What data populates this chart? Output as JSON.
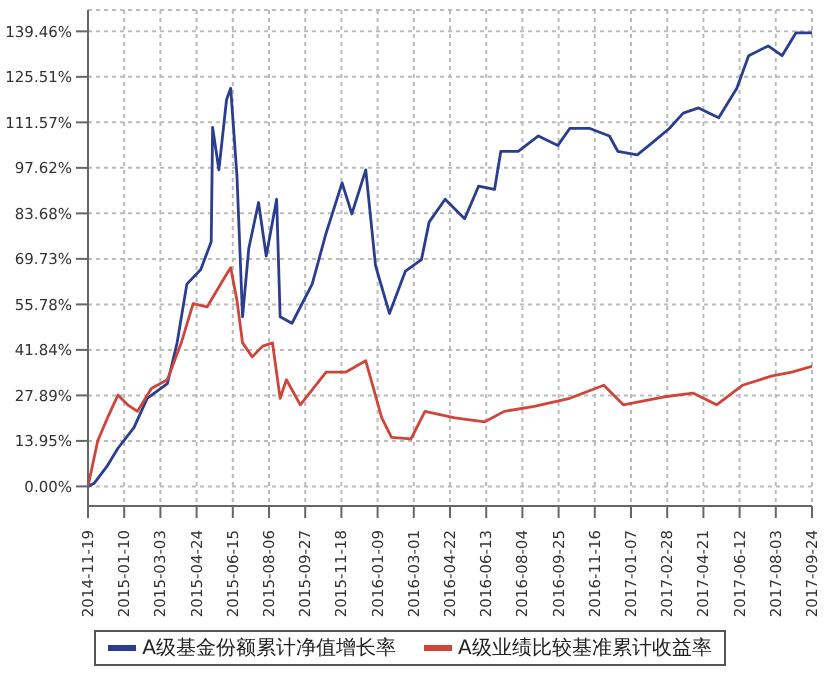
{
  "chart_data": {
    "type": "line",
    "x": [
      "2014-11-19",
      "2014-11-28",
      "2014-12-17",
      "2015-01-01",
      "2015-01-24",
      "2015-02-12",
      "2015-03-13",
      "2015-03-27",
      "2015-04-10",
      "2015-04-30",
      "2015-05-15",
      "2015-05-17",
      "2015-05-26",
      "2015-06-06",
      "2015-06-12",
      "2015-06-21",
      "2015-06-29",
      "2015-07-08",
      "2015-07-22",
      "2015-08-02",
      "2015-08-17",
      "2015-08-22",
      "2015-09-08",
      "2015-10-07",
      "2015-10-27",
      "2015-11-19",
      "2015-12-03",
      "2015-12-23",
      "2016-01-06",
      "2016-01-26",
      "2016-02-18",
      "2016-03-12",
      "2016-03-23",
      "2016-04-15",
      "2016-05-13",
      "2016-06-02",
      "2016-06-25",
      "2016-07-04",
      "2016-07-29",
      "2016-08-27",
      "2016-09-24",
      "2016-10-11",
      "2016-11-09",
      "2016-12-07",
      "2016-12-19",
      "2017-01-16",
      "2017-02-08",
      "2017-03-03",
      "2017-03-23",
      "2017-04-14",
      "2017-05-13",
      "2017-06-08",
      "2017-06-25",
      "2017-07-23",
      "2017-08-12",
      "2017-09-01",
      "2017-09-24"
    ],
    "series": [
      {
        "name": "A级基金份额累计净值增长率",
        "color": "#2b3d8f",
        "values": [
          0,
          1,
          6.4,
          11.7,
          18,
          27,
          31.5,
          44,
          62,
          66.5,
          75,
          110,
          97,
          118.5,
          122,
          95,
          52,
          73,
          87,
          70.6,
          88,
          52,
          50,
          62,
          77.6,
          93,
          83.5,
          97,
          67.7,
          53,
          66,
          69.5,
          81,
          88,
          82,
          92,
          91,
          102.7,
          102.7,
          107.4,
          104.5,
          109.7,
          109.7,
          107.4,
          102.7,
          101.6,
          105.6,
          109.7,
          114.4,
          116,
          113,
          122,
          132,
          135,
          132,
          139,
          139
        ]
      },
      {
        "name": "A级业绩比较基准累计收益率",
        "color": "#d0453a",
        "x": [
          "2014-11-19",
          "2014-12-03",
          "2014-12-17",
          "2015-01-01",
          "2015-01-15",
          "2015-01-29",
          "2015-02-18",
          "2015-03-13",
          "2015-04-02",
          "2015-04-19",
          "2015-05-09",
          "2015-06-06",
          "2015-06-12",
          "2015-06-21",
          "2015-06-29",
          "2015-07-13",
          "2015-07-28",
          "2015-08-11",
          "2015-08-22",
          "2015-08-31",
          "2015-09-20",
          "2015-10-27",
          "2015-11-24",
          "2015-12-23",
          "2016-01-15",
          "2016-01-29",
          "2016-02-26",
          "2016-03-17",
          "2016-04-29",
          "2016-06-11",
          "2016-07-09",
          "2016-08-21",
          "2016-10-11",
          "2016-11-29",
          "2016-12-27",
          "2017-02-22",
          "2017-04-06",
          "2017-05-10",
          "2017-06-16",
          "2017-07-29",
          "2017-08-26",
          "2017-09-24"
        ],
        "values": [
          0,
          14,
          21,
          28,
          25,
          23,
          30,
          32.7,
          44,
          56,
          55,
          65,
          67,
          57,
          44,
          39.7,
          43,
          44,
          27,
          32.7,
          25,
          35,
          35,
          38.5,
          21,
          15,
          14.6,
          23,
          21,
          19.8,
          23,
          24.5,
          27,
          31,
          25,
          27.4,
          28.6,
          25,
          31,
          33.9,
          35,
          36.8
        ]
      }
    ],
    "xlim": [
      "2014-11-19",
      "2017-09-24"
    ],
    "xticks": [
      "2014-11-19",
      "2015-01-10",
      "2015-03-03",
      "2015-04-24",
      "2015-06-15",
      "2015-08-06",
      "2015-09-27",
      "2015-11-18",
      "2016-01-09",
      "2016-03-01",
      "2016-04-22",
      "2016-06-13",
      "2016-08-04",
      "2016-09-25",
      "2016-11-16",
      "2017-01-07",
      "2017-02-28",
      "2017-04-21",
      "2017-06-12",
      "2017-08-03",
      "2017-09-24"
    ],
    "ylim": [
      -6,
      146
    ],
    "yticks": [
      {
        "value": 0,
        "label": "0.00%"
      },
      {
        "value": 13.95,
        "label": "13.95%"
      },
      {
        "value": 27.89,
        "label": "27.89%"
      },
      {
        "value": 41.84,
        "label": "41.84%"
      },
      {
        "value": 55.78,
        "label": "55.78%"
      },
      {
        "value": 69.73,
        "label": "69.73%"
      },
      {
        "value": 83.68,
        "label": "83.68%"
      },
      {
        "value": 97.62,
        "label": "97.62%"
      },
      {
        "value": 111.57,
        "label": "111.57%"
      },
      {
        "value": 125.51,
        "label": "125.51%"
      },
      {
        "value": 139.46,
        "label": "139.46%"
      }
    ],
    "grid": true,
    "legend": "bottom",
    "marker": "none",
    "line_style": "solid"
  }
}
